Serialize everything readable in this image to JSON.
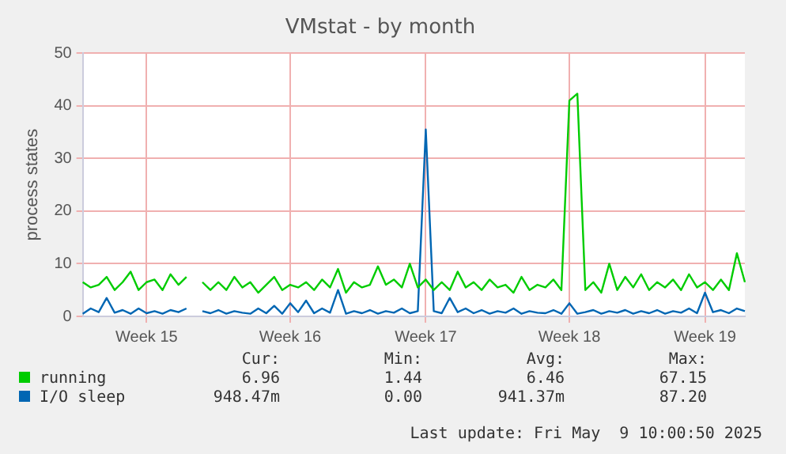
{
  "chart_data": {
    "type": "line",
    "title": "VMstat - by month",
    "ylabel": "process states",
    "categories": [
      null,
      null,
      null,
      null,
      null,
      null,
      null,
      null,
      "Week 15",
      null,
      null,
      null,
      null,
      null,
      null,
      null,
      null,
      null,
      null,
      null,
      null,
      null,
      null,
      null,
      null,
      null,
      "Week 16",
      null,
      null,
      null,
      null,
      null,
      null,
      null,
      null,
      null,
      null,
      null,
      null,
      null,
      null,
      null,
      null,
      "Week 17",
      null,
      null,
      null,
      null,
      null,
      null,
      null,
      null,
      null,
      null,
      null,
      null,
      null,
      null,
      null,
      null,
      null,
      "Week 18",
      null,
      null,
      null,
      null,
      null,
      null,
      null,
      null,
      null,
      null,
      null,
      null,
      null,
      null,
      null,
      null,
      "Week 19",
      null,
      null,
      null,
      null,
      null
    ],
    "series": [
      {
        "name": "running",
        "color": "#00cc00",
        "values": [
          6.5,
          5.5,
          6,
          7.5,
          5,
          6.5,
          8.5,
          5,
          6.5,
          7,
          5,
          8,
          6,
          7.5,
          null,
          6.5,
          5,
          6.5,
          5,
          7.5,
          5.5,
          6.5,
          4.5,
          6,
          7.5,
          5,
          6,
          5.5,
          6.5,
          5,
          7,
          5.5,
          9,
          4.5,
          6.5,
          5.5,
          6,
          9.5,
          6,
          7,
          5.5,
          10,
          5.5,
          7,
          5,
          6.5,
          5,
          8.5,
          5.5,
          6.5,
          5,
          7,
          5.5,
          6,
          4.5,
          7.5,
          5,
          6,
          5.5,
          7,
          5,
          41,
          42.3,
          5,
          6.5,
          4.5,
          10,
          5,
          7.5,
          5.5,
          8,
          5,
          6.5,
          5.5,
          7,
          5,
          8,
          5.5,
          6.5,
          5,
          7,
          5,
          12,
          6.5
        ]
      },
      {
        "name": "I/O sleep",
        "color": "#0066b3",
        "values": [
          0.5,
          1.5,
          0.8,
          3.5,
          0.7,
          1.2,
          0.5,
          1.5,
          0.6,
          1,
          0.5,
          1.2,
          0.8,
          1.5,
          null,
          1,
          0.6,
          1.2,
          0.5,
          1,
          0.7,
          0.5,
          1.5,
          0.6,
          2,
          0.5,
          2.5,
          0.8,
          3,
          0.6,
          1.5,
          0.7,
          5,
          0.5,
          1,
          0.6,
          1.2,
          0.5,
          1,
          0.7,
          1.5,
          0.6,
          1,
          35.5,
          1,
          0.6,
          3.5,
          0.8,
          1.5,
          0.6,
          1.2,
          0.5,
          1,
          0.7,
          1.5,
          0.5,
          1,
          0.7,
          0.6,
          1.2,
          0.5,
          2.5,
          0.5,
          0.8,
          1.2,
          0.5,
          1,
          0.7,
          1.2,
          0.5,
          1,
          0.6,
          1.2,
          0.5,
          1,
          0.7,
          1.5,
          0.6,
          4.5,
          0.8,
          1.2,
          0.6,
          1.5,
          1
        ]
      }
    ],
    "ylim": [
      0,
      50
    ],
    "yticks": [
      0,
      10,
      20,
      30,
      40,
      50
    ],
    "grid": true,
    "legend": "bottom",
    "marker": "none",
    "line_style": "solid",
    "annotations": [
      "Cur:",
      "Min:",
      "Avg:",
      "Max:",
      "6.96",
      "1.44",
      "6.46",
      "67.15",
      "948.47m",
      "0.00",
      "941.37m",
      "87.20",
      "Last update: Fri May  9 10:00:50 2025"
    ]
  }
}
